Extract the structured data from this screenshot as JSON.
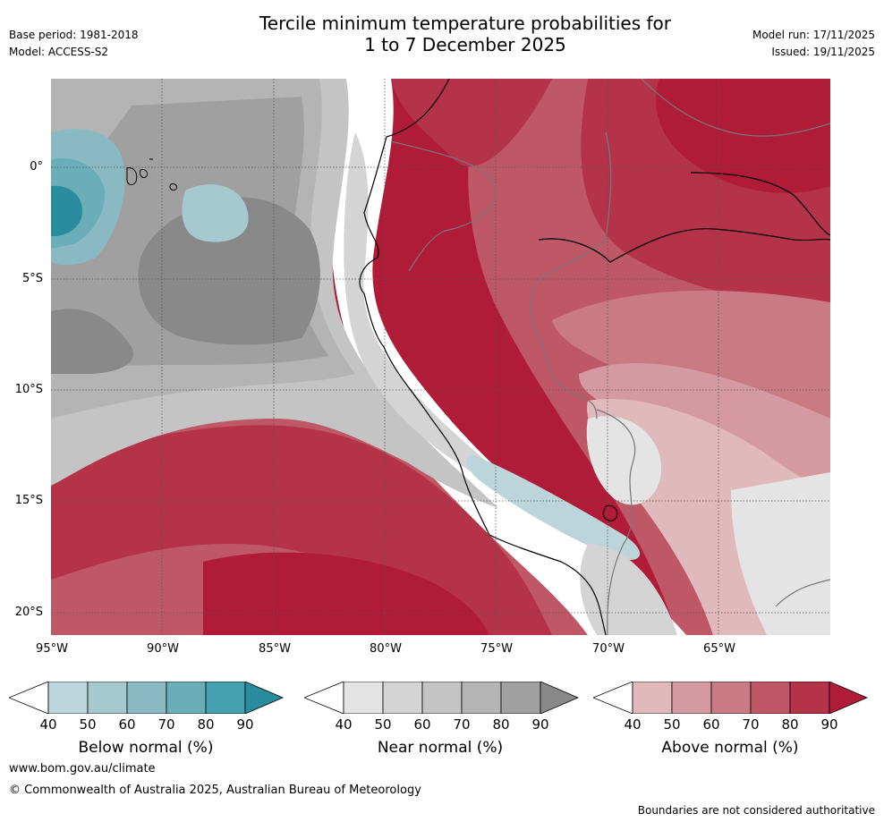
{
  "header": {
    "base_period": "Base period: 1981-2018",
    "model": "Model: ACCESS-S2",
    "title_line1": "Tercile minimum temperature probabilities for",
    "title_line2": "1 to 7 December 2025",
    "model_run": "Model run: 17/11/2025",
    "issued": "Issued: 19/11/2025"
  },
  "map": {
    "lat_labels": [
      "0°",
      "5°S",
      "10°S",
      "15°S",
      "20°S"
    ],
    "lon_labels": [
      "95°W",
      "90°W",
      "85°W",
      "80°W",
      "75°W",
      "70°W",
      "65°W"
    ]
  },
  "legends": [
    {
      "title": "Below normal (%)",
      "ticks": [
        "40",
        "50",
        "60",
        "70",
        "80",
        "90"
      ],
      "colors": [
        "#ffffff",
        "#bcd5da",
        "#a6c9cf",
        "#89b9c3",
        "#6badb9",
        "#45a0af",
        "#2a8d9f"
      ]
    },
    {
      "title": "Near normal (%)",
      "ticks": [
        "40",
        "50",
        "60",
        "70",
        "80",
        "90"
      ],
      "colors": [
        "#ffffff",
        "#e4e4e4",
        "#d4d4d4",
        "#c4c4c4",
        "#b4b4b4",
        "#a0a0a0",
        "#898989"
      ]
    },
    {
      "title": "Above normal (%)",
      "ticks": [
        "40",
        "50",
        "60",
        "70",
        "80",
        "90"
      ],
      "colors": [
        "#ffffff",
        "#e0b9bd",
        "#d59aa1",
        "#ca7a83",
        "#bf5866",
        "#b53349",
        "#b01c37"
      ]
    }
  ],
  "footer": {
    "website": "www.bom.gov.au/climate",
    "copyright": "© Commonwealth of Australia 2025, Australian Bureau of Meteorology",
    "disclaimer": "Boundaries are not considered authoritative"
  }
}
